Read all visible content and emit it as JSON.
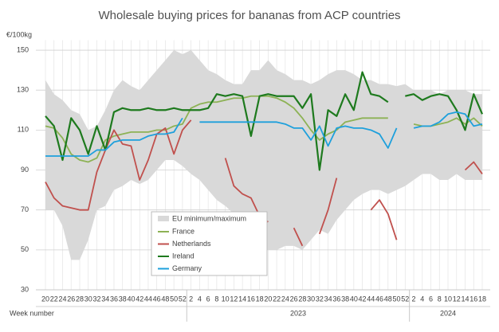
{
  "chart_data": {
    "type": "line",
    "title": "Wholesale buying prices for bananas from ACP countries",
    "y_unit": "€/100kg",
    "x_label": "Week number",
    "year_labels": [
      {
        "text": "2023",
        "from": 17,
        "to": 42
      },
      {
        "text": "2024",
        "from": 43,
        "to": 51
      }
    ],
    "categories": [
      "20",
      "22",
      "24",
      "26",
      "28",
      "30",
      "32",
      "34",
      "36",
      "38",
      "40",
      "42",
      "44",
      "46",
      "48",
      "50",
      "52",
      "2",
      "4",
      "6",
      "8",
      "10",
      "12",
      "14",
      "16",
      "18",
      "20",
      "22",
      "24",
      "26",
      "28",
      "30",
      "32",
      "34",
      "36",
      "38",
      "40",
      "42",
      "44",
      "46",
      "48",
      "50",
      "52",
      "2",
      "4",
      "6",
      "8",
      "10",
      "12",
      "14",
      "16",
      "18"
    ],
    "ylim": [
      30,
      155
    ],
    "yticks": [
      30,
      50,
      70,
      90,
      110,
      130,
      150
    ],
    "grid": true,
    "legend": "lower left",
    "band": {
      "name": "EU minimum/maximum",
      "color": "#d9d9d9",
      "upper": [
        135,
        128,
        125,
        120,
        118,
        110,
        112,
        120,
        130,
        135,
        132,
        130,
        135,
        140,
        145,
        150,
        148,
        150,
        145,
        140,
        138,
        135,
        133,
        133,
        140,
        140,
        145,
        140,
        138,
        135,
        135,
        133,
        135,
        138,
        140,
        140,
        138,
        135,
        135,
        133,
        133,
        132,
        133,
        130,
        130,
        130,
        128,
        130,
        130,
        130,
        128,
        128
      ],
      "lower": [
        70,
        70,
        62,
        45,
        45,
        55,
        70,
        72,
        80,
        82,
        85,
        83,
        85,
        90,
        95,
        95,
        92,
        88,
        85,
        80,
        75,
        72,
        68,
        60,
        55,
        50,
        50,
        50,
        52,
        52,
        50,
        55,
        60,
        58,
        65,
        70,
        75,
        78,
        80,
        80,
        78,
        80,
        82,
        85,
        88,
        88,
        85,
        85,
        88,
        85,
        85,
        85
      ]
    },
    "series": [
      {
        "name": "France",
        "color": "#8db255",
        "values": [
          112,
          111,
          106,
          98,
          95,
          94,
          96,
          105,
          107,
          108,
          109,
          109,
          109,
          110,
          110,
          112,
          113,
          121,
          123,
          124,
          124,
          125,
          126,
          126,
          127,
          127,
          127,
          126,
          124,
          121,
          116,
          110,
          105,
          108,
          110,
          114,
          115,
          116,
          116,
          116,
          116,
          null,
          null,
          113,
          112,
          112,
          113,
          114,
          116,
          113,
          116,
          112
        ]
      },
      {
        "name": "Netherlands",
        "color": "#c0504d",
        "values": [
          84,
          76,
          72,
          71,
          70,
          70,
          89,
          100,
          110,
          103,
          102,
          85,
          95,
          108,
          111,
          98,
          110,
          115,
          null,
          null,
          null,
          96,
          82,
          78,
          76,
          67,
          64,
          null,
          null,
          61,
          52,
          null,
          58,
          70,
          86,
          null,
          null,
          null,
          70,
          75,
          68,
          55,
          null,
          null,
          null,
          null,
          null,
          null,
          null,
          90,
          94,
          88
        ]
      },
      {
        "name": "Ireland",
        "color": "#1e7a1e",
        "values": [
          117,
          112,
          95,
          116,
          110,
          98,
          112,
          100,
          119,
          121,
          120,
          120,
          121,
          120,
          120,
          121,
          120,
          120,
          120,
          121,
          128,
          127,
          128,
          127,
          107,
          127,
          128,
          127,
          127,
          127,
          121,
          128,
          90,
          120,
          117,
          128,
          120,
          139,
          128,
          127,
          124,
          null,
          127,
          128,
          125,
          127,
          128,
          127,
          120,
          110,
          128,
          118
        ]
      },
      {
        "name": "Germany",
        "color": "#1ea0dc",
        "values": [
          97,
          97,
          97,
          97,
          97,
          97,
          100,
          100,
          104,
          105,
          105,
          105,
          107,
          108,
          108,
          109,
          116,
          null,
          114,
          114,
          114,
          114,
          114,
          114,
          114,
          114,
          114,
          114,
          113,
          111,
          111,
          105,
          112,
          102,
          111,
          112,
          111,
          111,
          110,
          108,
          101,
          111,
          null,
          111,
          112,
          112,
          114,
          118,
          119,
          118,
          112,
          113
        ]
      }
    ]
  }
}
